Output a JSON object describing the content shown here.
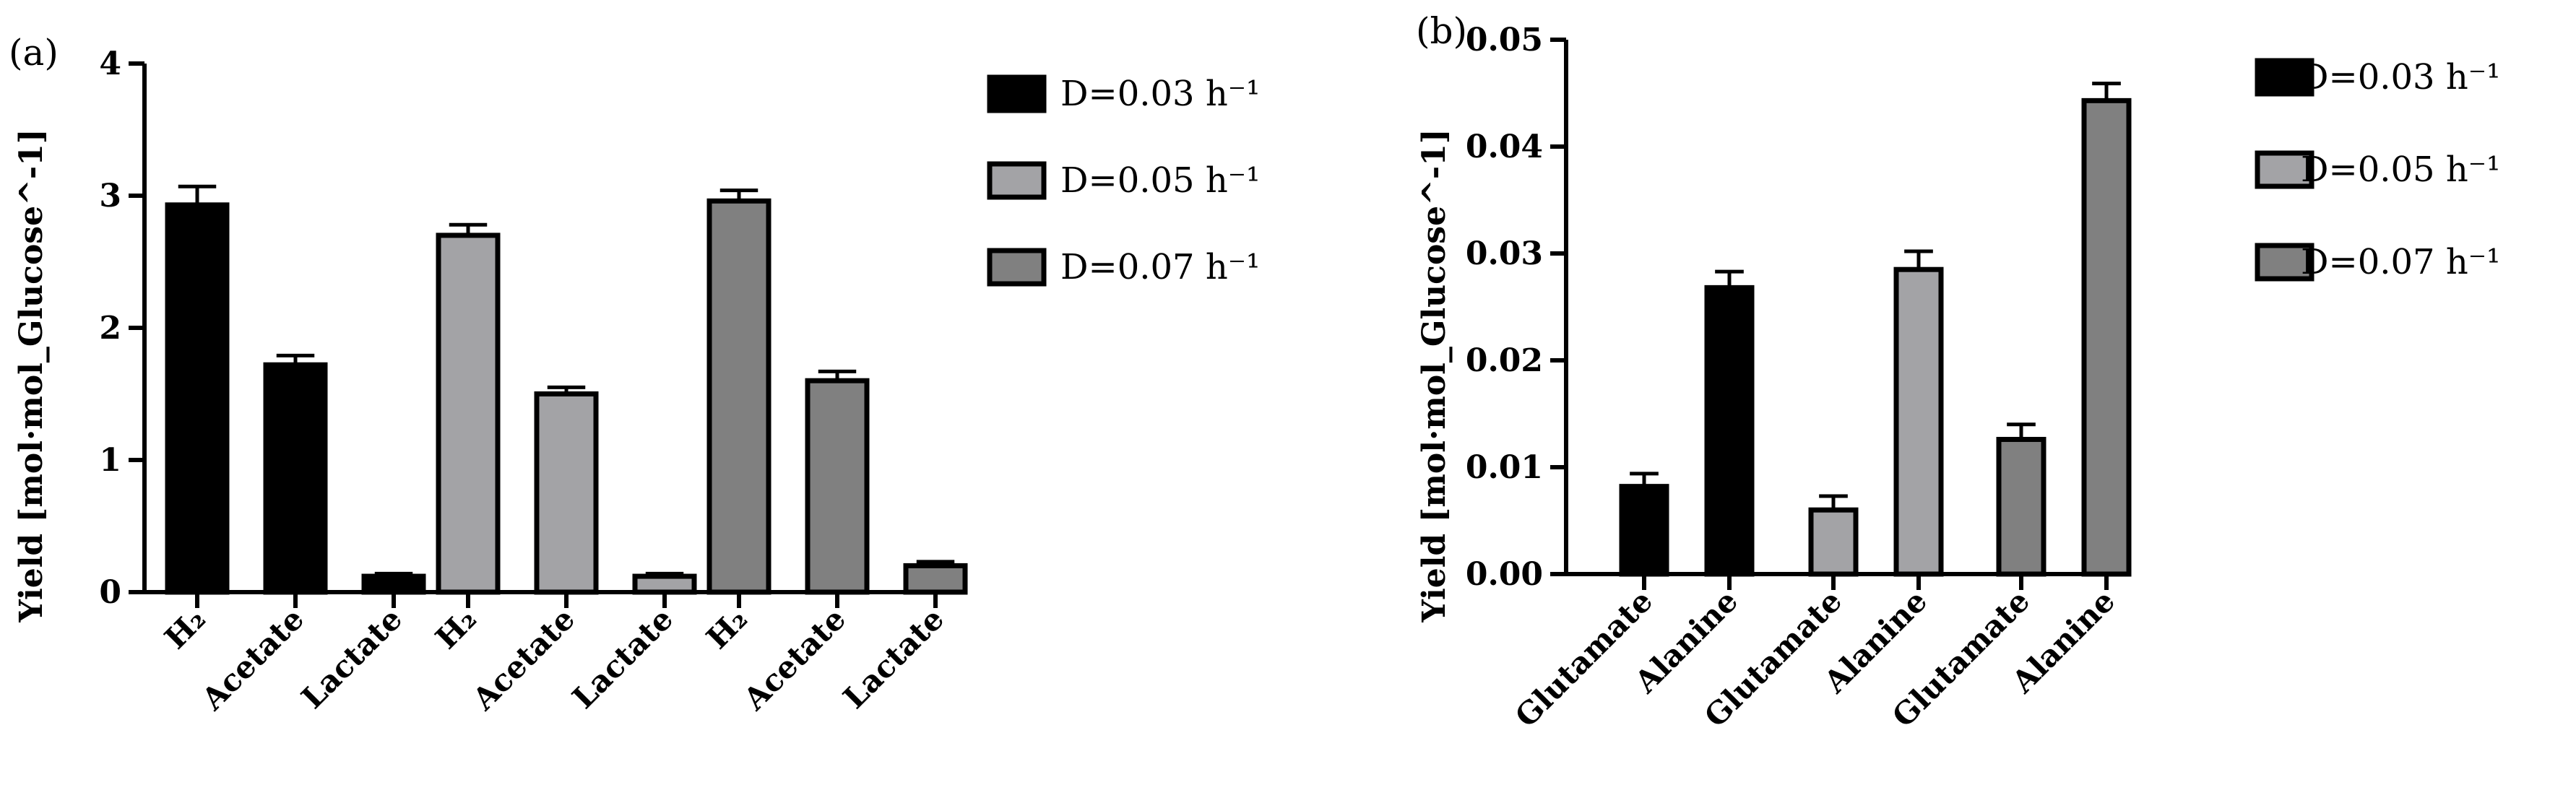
{
  "chart_data": [
    {
      "id": "a",
      "type": "bar",
      "panel_label": "(a)",
      "ylabel": "Yield [mol·mol_Glucose^-1]",
      "ylim": [
        0,
        4
      ],
      "yticks": [
        "0",
        "1",
        "2",
        "3",
        "4"
      ],
      "xtick_labels": [
        "H₂",
        "Acetate",
        "Lactate",
        "H₂",
        "Acetate",
        "Lactate",
        "H₂",
        "Acetate",
        "Lactate"
      ],
      "series": [
        {
          "name": "D=0.03 h⁻¹",
          "color": "#000000",
          "categories": [
            "H₂",
            "Acetate",
            "Lactate"
          ],
          "values": [
            2.93,
            1.72,
            0.12
          ],
          "errors": [
            0.14,
            0.07,
            0.02
          ]
        },
        {
          "name": "D=0.05 h⁻¹",
          "color": "#a3a3a6",
          "categories": [
            "H₂",
            "Acetate",
            "Lactate"
          ],
          "values": [
            2.7,
            1.5,
            0.12
          ],
          "errors": [
            0.08,
            0.05,
            0.02
          ]
        },
        {
          "name": "D=0.07 h⁻¹",
          "color": "#808080",
          "categories": [
            "H₂",
            "Acetate",
            "Lactate"
          ],
          "values": [
            2.96,
            1.6,
            0.2
          ],
          "errors": [
            0.08,
            0.07,
            0.03
          ]
        }
      ],
      "legend": {
        "position": "right",
        "entries": [
          "D=0.03 h⁻¹",
          "D=0.05 h⁻¹",
          "D=0.07 h⁻¹"
        ]
      }
    },
    {
      "id": "b",
      "type": "bar",
      "panel_label": "(b)",
      "ylabel": "Yield [mol·mol_Glucose^-1]",
      "ylim": [
        0,
        0.05
      ],
      "yticks": [
        "0.00",
        "0.01",
        "0.02",
        "0.03",
        "0.04",
        "0.05"
      ],
      "xtick_labels": [
        "Glutamate",
        "Alanine",
        "Glutamate",
        "Alanine",
        "Glutamate",
        "Alanine"
      ],
      "series": [
        {
          "name": "D=0.03 h⁻¹",
          "color": "#000000",
          "categories": [
            "Glutamate",
            "Alanine"
          ],
          "values": [
            0.0082,
            0.0268
          ],
          "errors": [
            0.0012,
            0.0015
          ]
        },
        {
          "name": "D=0.05 h⁻¹",
          "color": "#a3a3a6",
          "categories": [
            "Glutamate",
            "Alanine"
          ],
          "values": [
            0.006,
            0.0285
          ],
          "errors": [
            0.0013,
            0.0017
          ]
        },
        {
          "name": "D=0.07 h⁻¹",
          "color": "#808080",
          "categories": [
            "Glutamate",
            "Alanine"
          ],
          "values": [
            0.0126,
            0.0443
          ],
          "errors": [
            0.0014,
            0.0016
          ]
        }
      ],
      "legend": {
        "position": "right",
        "entries": [
          "D=0.03 h⁻¹",
          "D=0.05 h⁻¹",
          "D=0.07 h⁻¹"
        ]
      }
    }
  ]
}
